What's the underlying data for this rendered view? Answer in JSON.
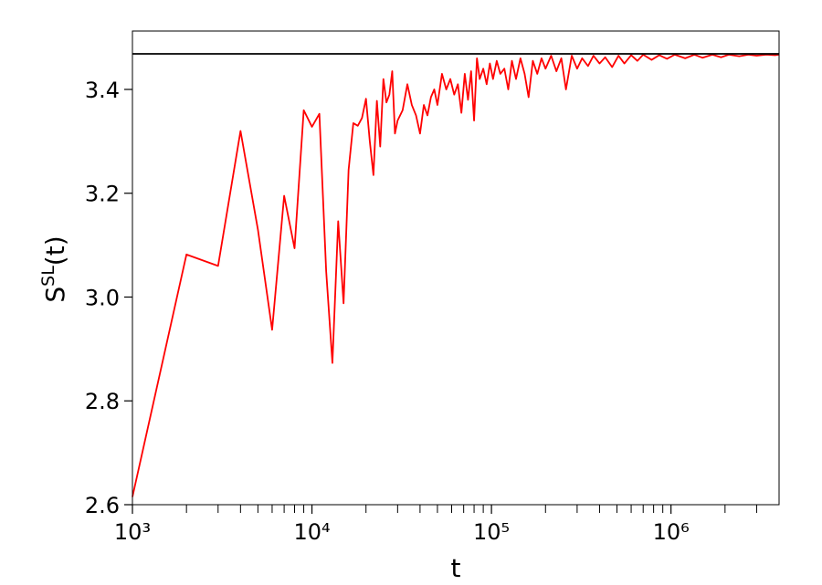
{
  "chart_data": {
    "type": "line",
    "xlabel": "t",
    "ylabel": [
      "S",
      "SL",
      "(t)"
    ],
    "xscale": "log",
    "xlim": [
      1000,
      4000000
    ],
    "ylim": [
      2.6,
      3.5125
    ],
    "xticks": [
      {
        "value": 1000,
        "label": "10³"
      },
      {
        "value": 10000,
        "label": "10⁴"
      },
      {
        "value": 100000,
        "label": "10⁵"
      },
      {
        "value": 1000000,
        "label": "10⁶"
      }
    ],
    "xminorticks": [
      2000,
      3000,
      4000,
      5000,
      6000,
      7000,
      8000,
      9000,
      20000,
      30000,
      40000,
      50000,
      60000,
      70000,
      80000,
      90000,
      200000,
      300000,
      400000,
      500000,
      600000,
      700000,
      800000,
      900000,
      2000000,
      3000000
    ],
    "yticks": [
      2.6,
      2.8,
      {
        "value": 3,
        "label": "3.0"
      },
      3.2,
      3.4
    ],
    "hline": {
      "value": 3.4686,
      "color": "#000000"
    },
    "x": [
      1000,
      2000,
      3000,
      4000,
      5000,
      6000,
      7000,
      8000,
      9000,
      10000,
      11000,
      12000,
      13000,
      14000,
      15000,
      16000,
      17000,
      18000,
      19000,
      20000,
      21000,
      22000,
      23000,
      24000,
      25000,
      26000,
      27000,
      28000,
      29000,
      30000,
      32000,
      34000,
      36000,
      38000,
      40000,
      42000,
      44000,
      46000,
      48000,
      50000,
      53000,
      56000,
      59000,
      62000,
      65000,
      68000,
      71000,
      74000,
      77000,
      80000,
      83000,
      86000,
      90000,
      94000,
      98000,
      102000,
      107000,
      112000,
      118000,
      124000,
      130000,
      137000,
      145000,
      153000,
      161000,
      170000,
      180000,
      190000,
      200000,
      215000,
      230000,
      245000,
      260000,
      280000,
      300000,
      320000,
      345000,
      370000,
      400000,
      430000,
      470000,
      510000,
      550000,
      600000,
      650000,
      700000,
      780000,
      860000,
      950000,
      1050000,
      1200000,
      1350000,
      1500000,
      1700000,
      1900000,
      2100000,
      2400000,
      2700000,
      3000000,
      3400000,
      3800000,
      4000000
    ],
    "series": [
      {
        "color": "#ff0000",
        "values": [
          2.615,
          3.082,
          3.06,
          3.32,
          3.13,
          2.937,
          3.195,
          3.094,
          3.36,
          3.328,
          3.353,
          3.05,
          2.873,
          3.146,
          2.988,
          3.245,
          3.335,
          3.33,
          3.345,
          3.382,
          3.3,
          3.235,
          3.378,
          3.29,
          3.42,
          3.375,
          3.39,
          3.435,
          3.315,
          3.34,
          3.36,
          3.41,
          3.37,
          3.35,
          3.315,
          3.37,
          3.35,
          3.385,
          3.4,
          3.37,
          3.43,
          3.4,
          3.42,
          3.39,
          3.41,
          3.355,
          3.43,
          3.38,
          3.435,
          3.34,
          3.46,
          3.42,
          3.44,
          3.41,
          3.45,
          3.42,
          3.455,
          3.43,
          3.44,
          3.4,
          3.455,
          3.42,
          3.46,
          3.43,
          3.385,
          3.455,
          3.43,
          3.46,
          3.44,
          3.465,
          3.435,
          3.46,
          3.4,
          3.465,
          3.44,
          3.46,
          3.445,
          3.465,
          3.45,
          3.462,
          3.443,
          3.465,
          3.45,
          3.466,
          3.455,
          3.467,
          3.457,
          3.466,
          3.459,
          3.467,
          3.46,
          3.467,
          3.461,
          3.467,
          3.462,
          3.467,
          3.464,
          3.467,
          3.465,
          3.467,
          3.466,
          3.467
        ]
      }
    ]
  }
}
